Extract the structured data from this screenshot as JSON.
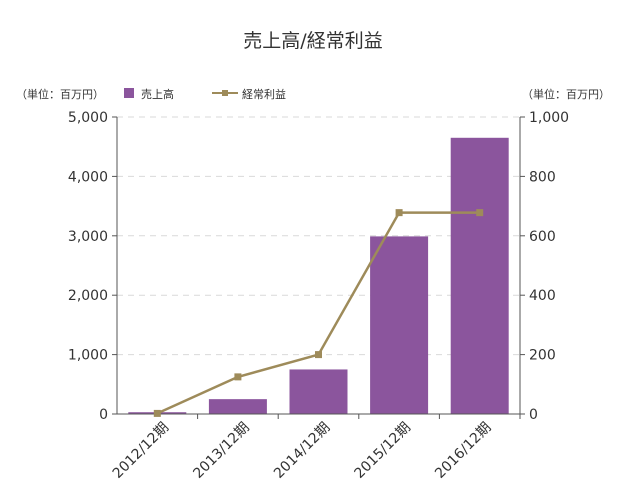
{
  "chart_data": {
    "type": "bar",
    "title": "売上高/経常利益",
    "left_unit": "（単位：百万円）",
    "right_unit": "（単位：百万円）",
    "categories": [
      "2012/12期",
      "2013/12期",
      "2014/12期",
      "2015/12期",
      "2016/12期"
    ],
    "series": [
      {
        "name": "売上高",
        "type": "bar",
        "axis": "left",
        "color": "#8b559d",
        "values": [
          30,
          250,
          750,
          2990,
          4650
        ]
      },
      {
        "name": "経常利益",
        "type": "line",
        "axis": "right",
        "color": "#9e8b5a",
        "values": [
          2,
          125,
          200,
          678,
          678
        ]
      }
    ],
    "left_axis": {
      "ylim": [
        0,
        5000
      ],
      "ticks": [
        0,
        1000,
        2000,
        3000,
        4000,
        5000
      ],
      "tick_labels": [
        "0",
        "1,000",
        "2,000",
        "3,000",
        "4,000",
        "5,000"
      ]
    },
    "right_axis": {
      "ylim": [
        0,
        1000
      ],
      "ticks": [
        0,
        200,
        400,
        600,
        800,
        1000
      ],
      "tick_labels": [
        "0",
        "200",
        "400",
        "600",
        "800",
        "1,000"
      ]
    },
    "grid": true,
    "legend_position": "top-left"
  }
}
